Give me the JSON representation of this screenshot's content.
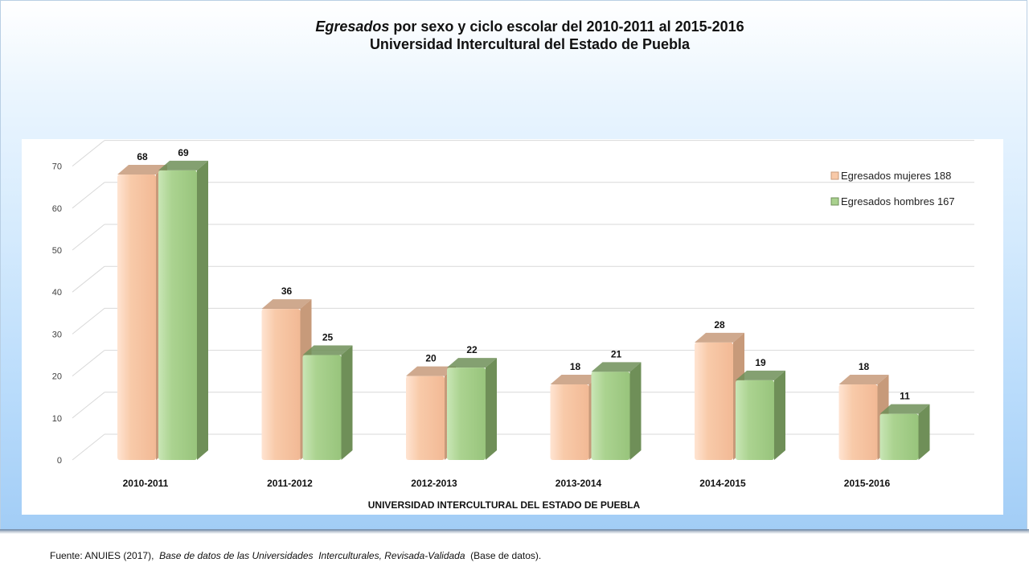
{
  "title": {
    "italic": "Egresados",
    "rest": " por sexo y ciclo escolar del  2010-2011 al 2015-2016",
    "line2": "Universidad Intercultural del Estado de Puebla"
  },
  "source": {
    "prefix": "Fuente: ANUIES (2017),  ",
    "italic": "Base de datos de las Universidades  Interculturales, Revisada-Validada",
    "suffix": "  (Base de datos)."
  },
  "chart_data": {
    "type": "bar",
    "title": "Egresados por sexo y ciclo escolar del 2010-2011 al 2015-2016 Universidad Intercultural del Estado de Puebla",
    "categories": [
      "2010-2011",
      "2011-2012",
      "2012-2013",
      "2013-2014",
      "2014-2015",
      "2015-2016"
    ],
    "xlabel": "UNIVERSIDAD INTERCULTURAL DEL ESTADO DE PUEBLA",
    "ylabel": "",
    "ylim": [
      0,
      70
    ],
    "yticks": [
      0,
      10,
      20,
      30,
      40,
      50,
      60,
      70
    ],
    "grid": true,
    "legend": "right",
    "series": [
      {
        "name": "Egresados mujeres 188",
        "values": [
          68,
          36,
          20,
          18,
          28,
          18
        ],
        "color": "#f8c9a8",
        "shade": "#c79a7a"
      },
      {
        "name": "Egresados hombres 167",
        "values": [
          69,
          25,
          22,
          21,
          19,
          11
        ],
        "color": "#a9d18e",
        "shade": "#6f8f58"
      }
    ]
  }
}
